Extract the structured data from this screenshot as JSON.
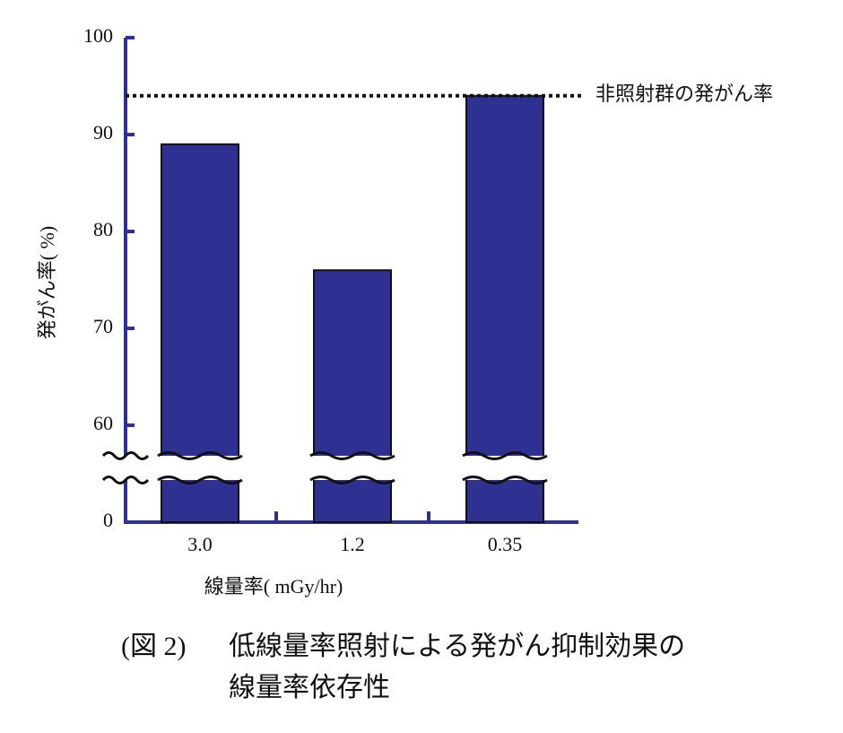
{
  "chart_data": {
    "type": "bar",
    "categories": [
      "3.0",
      "1.2",
      "0.35"
    ],
    "values": [
      89,
      76,
      94
    ],
    "color": "#2e3192",
    "ylim": [
      0,
      100
    ],
    "yticks": [
      0,
      60,
      70,
      80,
      90,
      100
    ],
    "x_label": "線量率( mGy/hr)",
    "y_label": "発がん率( %)",
    "reference_line": {
      "value": 94,
      "label": "非照射群の発がん率"
    }
  },
  "caption": {
    "figure": "(図 2)",
    "lines": [
      "低線量率照射による発がん抑制効果の",
      "線量率依存性"
    ]
  }
}
